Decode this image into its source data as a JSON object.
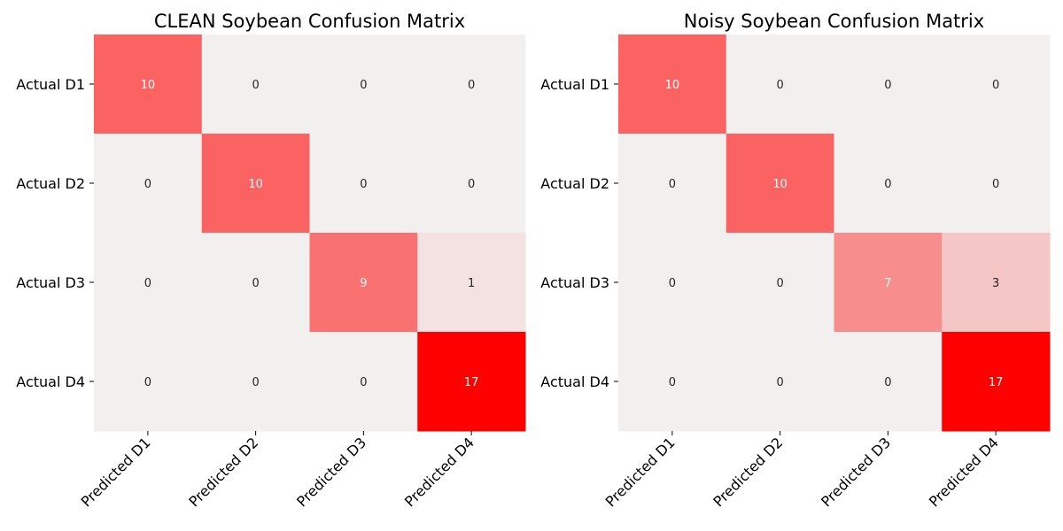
{
  "chart_data": [
    {
      "type": "heatmap",
      "title": "CLEAN Soybean Confusion Matrix",
      "row_labels": [
        "Actual D1",
        "Actual D2",
        "Actual D3",
        "Actual D4"
      ],
      "col_labels": [
        "Predicted D1",
        "Predicted D2",
        "Predicted D3",
        "Predicted D4"
      ],
      "values": [
        [
          10,
          0,
          0,
          0
        ],
        [
          0,
          10,
          0,
          0
        ],
        [
          0,
          0,
          9,
          1
        ],
        [
          0,
          0,
          0,
          17
        ]
      ],
      "vmin": 0,
      "vmax": 17,
      "colorbar": false,
      "annotations": true
    },
    {
      "type": "heatmap",
      "title": "Noisy Soybean Confusion Matrix",
      "row_labels": [
        "Actual D1",
        "Actual D2",
        "Actual D3",
        "Actual D4"
      ],
      "col_labels": [
        "Predicted D1",
        "Predicted D2",
        "Predicted D3",
        "Predicted D4"
      ],
      "values": [
        [
          10,
          0,
          0,
          0
        ],
        [
          0,
          10,
          0,
          0
        ],
        [
          0,
          0,
          7,
          3
        ],
        [
          0,
          0,
          0,
          17
        ]
      ],
      "vmin": 0,
      "vmax": 17,
      "colorbar": false,
      "annotations": true
    }
  ],
  "colors": {
    "low": "#f2f0ef",
    "high": "#ff0000",
    "text_dark": "#262626",
    "text_light": "#ffffff",
    "tick": "#000000"
  }
}
